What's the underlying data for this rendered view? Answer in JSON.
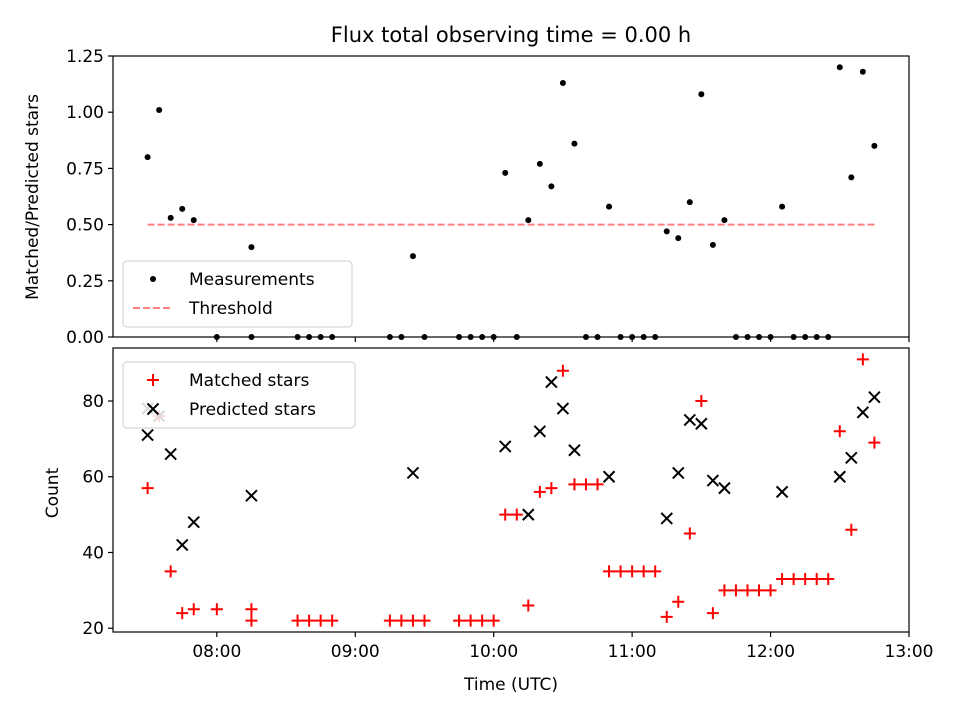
{
  "chart_data": [
    {
      "type": "scatter",
      "title": "Flux total observing time = 0.00 h",
      "ylabel": "Matched/Predicted stars",
      "xlim": [
        "07:15",
        "13:00"
      ],
      "ylim": [
        0,
        1.25
      ],
      "yticks": [
        "0.00",
        "0.25",
        "0.50",
        "0.75",
        "1.00",
        "1.25"
      ],
      "grid": false,
      "legend_position": "lower-left",
      "series": [
        {
          "name": "Measurements",
          "marker": "dot",
          "color": "#000000",
          "points": [
            [
              "07:30",
              0.8
            ],
            [
              "07:35",
              1.01
            ],
            [
              "07:40",
              0.53
            ],
            [
              "07:45",
              0.57
            ],
            [
              "07:50",
              0.52
            ],
            [
              "08:00",
              0.0
            ],
            [
              "08:15",
              0.4
            ],
            [
              "08:15",
              0.0
            ],
            [
              "08:35",
              0.0
            ],
            [
              "08:40",
              0.0
            ],
            [
              "08:45",
              0.0
            ],
            [
              "08:50",
              0.0
            ],
            [
              "09:15",
              0.0
            ],
            [
              "09:20",
              0.0
            ],
            [
              "09:25",
              0.36
            ],
            [
              "09:30",
              0.0
            ],
            [
              "09:45",
              0.0
            ],
            [
              "09:50",
              0.0
            ],
            [
              "09:55",
              0.0
            ],
            [
              "10:00",
              0.0
            ],
            [
              "10:05",
              0.73
            ],
            [
              "10:10",
              0.0
            ],
            [
              "10:15",
              0.52
            ],
            [
              "10:20",
              0.77
            ],
            [
              "10:25",
              0.67
            ],
            [
              "10:30",
              1.13
            ],
            [
              "10:35",
              0.86
            ],
            [
              "10:40",
              0.0
            ],
            [
              "10:45",
              0.0
            ],
            [
              "10:50",
              0.58
            ],
            [
              "10:55",
              0.0
            ],
            [
              "11:00",
              0.0
            ],
            [
              "11:05",
              0.0
            ],
            [
              "11:10",
              0.0
            ],
            [
              "11:15",
              0.47
            ],
            [
              "11:20",
              0.44
            ],
            [
              "11:25",
              0.6
            ],
            [
              "11:30",
              1.08
            ],
            [
              "11:35",
              0.41
            ],
            [
              "11:40",
              0.52
            ],
            [
              "11:45",
              0.0
            ],
            [
              "11:50",
              0.0
            ],
            [
              "11:55",
              0.0
            ],
            [
              "12:00",
              0.0
            ],
            [
              "12:05",
              0.58
            ],
            [
              "12:10",
              0.0
            ],
            [
              "12:15",
              0.0
            ],
            [
              "12:20",
              0.0
            ],
            [
              "12:25",
              0.0
            ],
            [
              "12:30",
              1.2
            ],
            [
              "12:35",
              0.71
            ],
            [
              "12:40",
              1.18
            ],
            [
              "12:45",
              0.85
            ]
          ]
        },
        {
          "name": "Threshold",
          "marker": "dashed-line",
          "color": "#ff8080",
          "points": [
            [
              "07:30",
              0.5
            ],
            [
              "12:45",
              0.5
            ]
          ]
        }
      ]
    },
    {
      "type": "scatter",
      "xlabel": "Time (UTC)",
      "ylabel": "Count",
      "xlim": [
        "07:15",
        "13:00"
      ],
      "ylim": [
        19,
        94
      ],
      "xticks": [
        "08:00",
        "09:00",
        "10:00",
        "11:00",
        "12:00",
        "13:00"
      ],
      "yticks": [
        "20",
        "40",
        "60",
        "80"
      ],
      "grid": false,
      "legend_position": "upper-left",
      "series": [
        {
          "name": "Matched stars",
          "marker": "plus",
          "color": "#ff0000",
          "points": [
            [
              "07:30",
              57
            ],
            [
              "07:35",
              76
            ],
            [
              "07:40",
              35
            ],
            [
              "07:45",
              24
            ],
            [
              "07:50",
              25
            ],
            [
              "08:00",
              25
            ],
            [
              "08:15",
              25
            ],
            [
              "08:15",
              22
            ],
            [
              "08:35",
              22
            ],
            [
              "08:40",
              22
            ],
            [
              "08:45",
              22
            ],
            [
              "08:50",
              22
            ],
            [
              "09:15",
              22
            ],
            [
              "09:20",
              22
            ],
            [
              "09:25",
              22
            ],
            [
              "09:30",
              22
            ],
            [
              "09:45",
              22
            ],
            [
              "09:50",
              22
            ],
            [
              "09:55",
              22
            ],
            [
              "10:00",
              22
            ],
            [
              "10:05",
              50
            ],
            [
              "10:10",
              50
            ],
            [
              "10:15",
              26
            ],
            [
              "10:20",
              56
            ],
            [
              "10:25",
              57
            ],
            [
              "10:30",
              88
            ],
            [
              "10:35",
              58
            ],
            [
              "10:40",
              58
            ],
            [
              "10:45",
              58
            ],
            [
              "10:50",
              35
            ],
            [
              "10:55",
              35
            ],
            [
              "11:00",
              35
            ],
            [
              "11:05",
              35
            ],
            [
              "11:10",
              35
            ],
            [
              "11:15",
              23
            ],
            [
              "11:20",
              27
            ],
            [
              "11:25",
              45
            ],
            [
              "11:30",
              80
            ],
            [
              "11:35",
              24
            ],
            [
              "11:40",
              30
            ],
            [
              "11:45",
              30
            ],
            [
              "11:50",
              30
            ],
            [
              "11:55",
              30
            ],
            [
              "12:00",
              30
            ],
            [
              "12:05",
              33
            ],
            [
              "12:10",
              33
            ],
            [
              "12:15",
              33
            ],
            [
              "12:20",
              33
            ],
            [
              "12:25",
              33
            ],
            [
              "12:30",
              72
            ],
            [
              "12:35",
              46
            ],
            [
              "12:40",
              91
            ],
            [
              "12:45",
              69
            ]
          ]
        },
        {
          "name": "Predicted stars",
          "marker": "x",
          "color": "#000000",
          "points": [
            [
              "07:30",
              71
            ],
            [
              "07:30",
              78
            ],
            [
              "07:35",
              76
            ],
            [
              "07:40",
              66
            ],
            [
              "07:45",
              42
            ],
            [
              "07:50",
              48
            ],
            [
              "08:15",
              55
            ],
            [
              "09:25",
              61
            ],
            [
              "10:05",
              68
            ],
            [
              "10:15",
              50
            ],
            [
              "10:20",
              72
            ],
            [
              "10:25",
              85
            ],
            [
              "10:30",
              78
            ],
            [
              "10:35",
              67
            ],
            [
              "10:50",
              60
            ],
            [
              "11:15",
              49
            ],
            [
              "11:20",
              61
            ],
            [
              "11:25",
              75
            ],
            [
              "11:30",
              74
            ],
            [
              "11:35",
              59
            ],
            [
              "11:40",
              57
            ],
            [
              "12:05",
              56
            ],
            [
              "12:30",
              60
            ],
            [
              "12:35",
              65
            ],
            [
              "12:40",
              77
            ],
            [
              "12:45",
              81
            ]
          ]
        }
      ]
    }
  ]
}
